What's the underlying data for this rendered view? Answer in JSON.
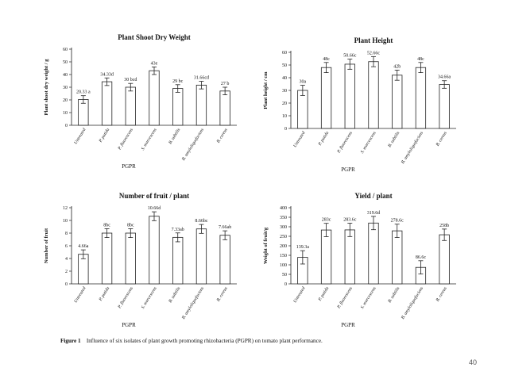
{
  "chart_data": [
    {
      "type": "bar",
      "title": "Plant Shoot Dry Weight",
      "xlabel": "PGPR",
      "ylabel": "Plant shoot dry weight / g",
      "ylim": [
        0,
        60
      ],
      "yticks": [
        "0",
        "10",
        "20",
        "30",
        "40",
        "50",
        "60"
      ],
      "categories": [
        "Untreated",
        "P. putida",
        "P. fluorescens",
        "S. marcescens",
        "B. subtilis",
        "B. amyloliquefaciens",
        "B. cereus"
      ],
      "values": [
        20.33,
        34.33,
        30,
        43,
        29,
        31.66,
        27
      ],
      "errors": [
        3,
        3,
        3,
        3,
        3,
        3,
        3
      ],
      "labels": [
        "20.33 a",
        "34.33d",
        "30 bcd",
        "43e",
        "29 bc",
        "31.66cd",
        "27 b"
      ]
    },
    {
      "type": "bar",
      "title": "Plant Height",
      "xlabel": "PGPR",
      "ylabel": "Plant height / cm",
      "ylim": [
        0,
        60
      ],
      "yticks": [
        "0",
        "10",
        "20",
        "30",
        "40",
        "50",
        "60"
      ],
      "categories": [
        "Untreated",
        "P. putida",
        "P. fluorescens",
        "S. marcescens",
        "B. subtilis",
        "B. amyloliquefaciens",
        "B. cereus"
      ],
      "values": [
        30,
        48,
        50.66,
        52.66,
        42,
        48,
        34.66
      ],
      "errors": [
        4,
        4,
        4,
        4,
        4,
        4,
        3
      ],
      "labels": [
        "30a",
        "48c",
        "50.66c",
        "52.66c",
        "42b",
        "48c",
        "34.66a"
      ]
    },
    {
      "type": "bar",
      "title": "Number of fruit / plant",
      "xlabel": "PGPR",
      "ylabel": "Number of fruit",
      "ylim": [
        0,
        12
      ],
      "yticks": [
        "0",
        "2",
        "4",
        "6",
        "8",
        "10",
        "12"
      ],
      "categories": [
        "Untreated",
        "P. putida",
        "P. fluorescens",
        "S. marcescens",
        "B. subtilis",
        "B. amyloliquefaciens",
        "B. cereus"
      ],
      "values": [
        4.66,
        8,
        8,
        10.66,
        7.33,
        8.66,
        7.66
      ],
      "errors": [
        0.7,
        0.7,
        0.7,
        0.7,
        0.7,
        0.7,
        0.7
      ],
      "labels": [
        "4.66a",
        "8bc",
        "8bc",
        "10.66d",
        "7.33ab",
        "8.66bc",
        "7.66ab"
      ]
    },
    {
      "type": "bar",
      "title": "Yield / plant",
      "xlabel": "PGPR",
      "ylabel": "Weight of fruit/g",
      "ylim": [
        0,
        400
      ],
      "yticks": [
        "0",
        "50",
        "100",
        "150",
        "200",
        "250",
        "300",
        "350",
        "400"
      ],
      "categories": [
        "Untreated",
        "P. putida",
        "P. fluorescens",
        "S. marcescens",
        "B. subtilis",
        "B. amyloliquefaciens",
        "B. cereus"
      ],
      "values": [
        139.3,
        283,
        283.6,
        319.6,
        278.6,
        86.6,
        258
      ],
      "errors": [
        35,
        35,
        35,
        35,
        35,
        35,
        30
      ],
      "labels": [
        "139.3a",
        "283c",
        "283.6c",
        "319.6d",
        "278.6c",
        "86.6c",
        "258b"
      ]
    }
  ],
  "caption": {
    "label": "Figure 1",
    "text": "Influence of six isolates of plant growth promoting rhizobacteria (PGPR) on tomato plant performance."
  },
  "page_number": "40"
}
